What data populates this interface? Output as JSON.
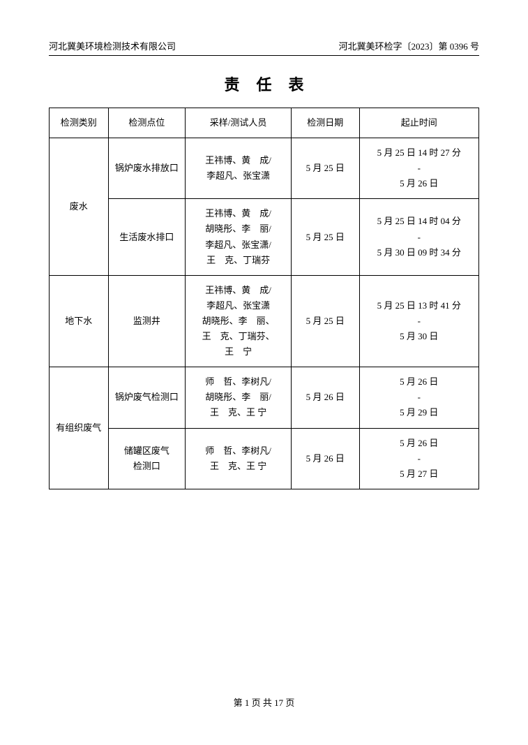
{
  "header": {
    "left": "河北冀美环境检测技术有限公司",
    "right": "河北冀美环检字〔2023〕第 0396 号"
  },
  "title": "责任表",
  "columns": {
    "c1": "检测类别",
    "c2": "检测点位",
    "c3": "采样/测试人员",
    "c4": "检测日期",
    "c5": "起止时间"
  },
  "rows": {
    "r1": {
      "category": "废水",
      "point": "锅炉废水排放口",
      "staff": "王祎博、黄　成/\n李超凡、张宝潇",
      "date": "5 月 25 日",
      "time": "5 月 25 日 14 时 27 分\n-\n5 月 26 日"
    },
    "r2": {
      "point": "生活废水排口",
      "staff": "王祎博、黄　成/\n胡晓彤、李　丽/\n李超凡、张宝潇/\n王　克、丁瑞芬",
      "date": "5 月 25 日",
      "time": "5 月 25 日 14 时 04 分\n-\n5 月 30 日 09 时 34 分"
    },
    "r3": {
      "category": "地下水",
      "point": "监测井",
      "staff": "王祎博、黄　成/\n李超凡、张宝潇\n胡晓彤、李　丽、\n王　克、丁瑞芬、\n王　宁",
      "date": "5 月 25 日",
      "time": "5 月 25 日 13 时 41 分\n-\n5 月 30 日"
    },
    "r4": {
      "category": "有组织废气",
      "point": "锅炉废气检测口",
      "staff": "师　哲、李树凡/\n胡晓彤、李　丽/\n王　克、王 宁",
      "date": "5 月 26 日",
      "time": "5 月 26 日\n-\n5 月 29 日"
    },
    "r5": {
      "point": "储罐区废气\n检测口",
      "staff": "师　哲、李树凡/\n王　克、王 宁",
      "date": "5 月 26 日",
      "time": "5 月 26 日\n-\n5 月 27 日"
    }
  },
  "footer": "第 1 页 共 17 页"
}
